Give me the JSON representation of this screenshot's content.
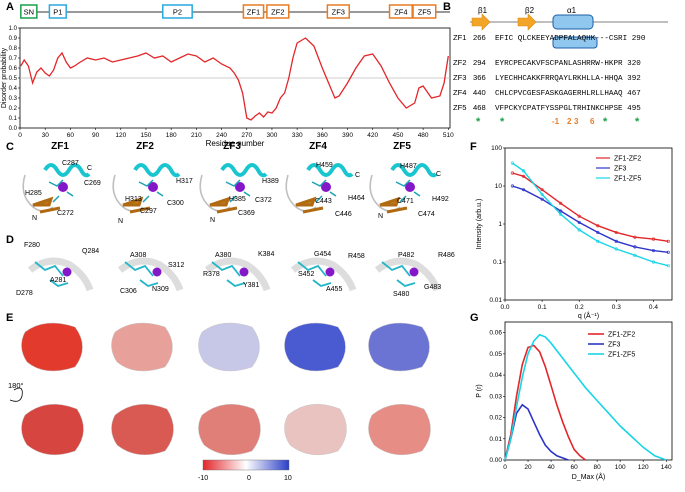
{
  "panels": {
    "a": "A",
    "b": "B",
    "c": "C",
    "d": "D",
    "e": "E",
    "f": "F",
    "g": "G"
  },
  "domains": [
    {
      "name": "SN",
      "start": 1,
      "end": 15,
      "color": "#1aa04a"
    },
    {
      "name": "P1",
      "start": 35,
      "end": 55,
      "color": "#29a9e0"
    },
    {
      "name": "P2",
      "start": 170,
      "end": 205,
      "color": "#29a9e0"
    },
    {
      "name": "ZF1",
      "start": 266,
      "end": 290,
      "color": "#e87b24"
    },
    {
      "name": "ZF2",
      "start": 294,
      "end": 320,
      "color": "#e87b24"
    },
    {
      "name": "ZF3",
      "start": 366,
      "end": 392,
      "color": "#e87b24"
    },
    {
      "name": "ZF4",
      "start": 440,
      "end": 467,
      "color": "#e87b24"
    },
    {
      "name": "ZF5",
      "start": 468,
      "end": 495,
      "color": "#e87b24"
    }
  ],
  "chart_data": [
    {
      "type": "line",
      "id": "disorder",
      "xlabel": "Residue number",
      "ylabel": "Disorder probability",
      "xlim": [
        0,
        512
      ],
      "ylim": [
        0,
        1.0
      ],
      "xticks": [
        0,
        30,
        60,
        90,
        120,
        150,
        180,
        210,
        240,
        270,
        300,
        330,
        360,
        390,
        420,
        450,
        480,
        510
      ],
      "yticks": [
        0.0,
        0.1,
        0.2,
        0.3,
        0.4,
        0.5,
        0.6,
        0.7,
        0.8,
        0.9,
        1.0
      ],
      "threshold": 0.5,
      "x": [
        1,
        5,
        10,
        15,
        20,
        25,
        30,
        35,
        40,
        45,
        50,
        55,
        60,
        65,
        70,
        80,
        90,
        100,
        110,
        120,
        130,
        140,
        150,
        160,
        170,
        180,
        190,
        200,
        210,
        220,
        230,
        240,
        250,
        255,
        260,
        265,
        270,
        275,
        280,
        285,
        290,
        295,
        300,
        305,
        310,
        315,
        320,
        325,
        330,
        340,
        350,
        360,
        370,
        375,
        380,
        390,
        400,
        410,
        420,
        430,
        440,
        450,
        460,
        470,
        475,
        480,
        490,
        500,
        505,
        510
      ],
      "y": [
        0.62,
        0.68,
        0.62,
        0.45,
        0.56,
        0.6,
        0.55,
        0.52,
        0.58,
        0.7,
        0.75,
        0.66,
        0.6,
        0.62,
        0.65,
        0.7,
        0.68,
        0.7,
        0.66,
        0.68,
        0.7,
        0.72,
        0.75,
        0.7,
        0.72,
        0.66,
        0.7,
        0.74,
        0.72,
        0.66,
        0.7,
        0.64,
        0.6,
        0.55,
        0.48,
        0.35,
        0.1,
        0.08,
        0.12,
        0.15,
        0.11,
        0.16,
        0.15,
        0.2,
        0.3,
        0.35,
        0.5,
        0.7,
        0.85,
        0.9,
        0.82,
        0.6,
        0.4,
        0.3,
        0.32,
        0.45,
        0.6,
        0.72,
        0.74,
        0.62,
        0.45,
        0.3,
        0.2,
        0.25,
        0.4,
        0.42,
        0.3,
        0.32,
        0.45,
        0.72
      ]
    },
    {
      "type": "line",
      "id": "saxs",
      "xlabel": "q (Å⁻¹)",
      "ylabel": "Intensity (arb.u.)",
      "xlim": [
        0,
        0.45
      ],
      "yscale": "log",
      "ylim": [
        0.01,
        100
      ],
      "xticks": [
        0.0,
        0.1,
        0.2,
        0.3,
        0.4
      ],
      "yticks": [
        "0.01",
        "0.1",
        "1",
        "10",
        "100"
      ],
      "series": [
        {
          "name": "ZF1-ZF2",
          "color": "#e3262a",
          "x": [
            0.02,
            0.05,
            0.1,
            0.15,
            0.2,
            0.25,
            0.3,
            0.35,
            0.4,
            0.44
          ],
          "y": [
            22,
            18,
            8,
            3.5,
            1.6,
            0.9,
            0.6,
            0.45,
            0.4,
            0.35
          ]
        },
        {
          "name": "ZF3",
          "color": "#2d35c9",
          "x": [
            0.02,
            0.05,
            0.1,
            0.15,
            0.2,
            0.25,
            0.3,
            0.35,
            0.4,
            0.44
          ],
          "y": [
            10,
            8,
            4.5,
            2.2,
            1.1,
            0.6,
            0.35,
            0.25,
            0.2,
            0.18
          ]
        },
        {
          "name": "ZF1-ZF5",
          "color": "#18d5e6",
          "x": [
            0.02,
            0.05,
            0.1,
            0.15,
            0.2,
            0.25,
            0.3,
            0.35,
            0.4,
            0.44
          ],
          "y": [
            40,
            25,
            6,
            1.8,
            0.7,
            0.35,
            0.22,
            0.15,
            0.1,
            0.08
          ]
        }
      ]
    },
    {
      "type": "line",
      "id": "pr",
      "xlabel": "D_Max (Å)",
      "ylabel": "P (r)",
      "xlim": [
        0,
        145
      ],
      "ylim": [
        0,
        0.065
      ],
      "xticks": [
        0,
        20,
        40,
        60,
        80,
        100,
        120,
        140
      ],
      "yticks": [
        "0.00",
        "0.01",
        "0.02",
        "0.03",
        "0.04",
        "0.05",
        "0.06"
      ],
      "series": [
        {
          "name": "ZF1-ZF2",
          "color": "#e3262a",
          "x": [
            0,
            5,
            10,
            15,
            20,
            25,
            30,
            35,
            40,
            45,
            50,
            55,
            60,
            65,
            70
          ],
          "y": [
            0,
            0.012,
            0.03,
            0.045,
            0.053,
            0.054,
            0.051,
            0.044,
            0.035,
            0.026,
            0.018,
            0.011,
            0.005,
            0.002,
            0
          ]
        },
        {
          "name": "ZF3",
          "color": "#2d35c9",
          "x": [
            0,
            5,
            10,
            15,
            20,
            25,
            30,
            35,
            40,
            45,
            50,
            55
          ],
          "y": [
            0,
            0.01,
            0.022,
            0.026,
            0.024,
            0.018,
            0.012,
            0.007,
            0.004,
            0.002,
            0.001,
            0
          ]
        },
        {
          "name": "ZF1-ZF5",
          "color": "#18d5e6",
          "x": [
            0,
            5,
            10,
            15,
            20,
            25,
            30,
            35,
            40,
            50,
            60,
            70,
            80,
            90,
            100,
            110,
            120,
            130,
            140
          ],
          "y": [
            0,
            0.01,
            0.025,
            0.039,
            0.05,
            0.056,
            0.059,
            0.058,
            0.055,
            0.048,
            0.041,
            0.034,
            0.028,
            0.022,
            0.016,
            0.011,
            0.006,
            0.002,
            0
          ]
        }
      ]
    }
  ],
  "zf_titles": [
    "ZF1",
    "ZF2",
    "ZF3",
    "ZF4",
    "ZF5"
  ],
  "panel_c_labels": [
    [
      "C287",
      "C269",
      "H285",
      "C272",
      "C",
      "N"
    ],
    [
      "H317",
      "H313",
      "C300",
      "C297",
      "N"
    ],
    [
      "H389",
      "H385",
      "C372",
      "C369",
      "N"
    ],
    [
      "H459",
      "C",
      "H464",
      "C443",
      "C446"
    ],
    [
      "H487",
      "C",
      "H492",
      "C471",
      "C474",
      "N"
    ]
  ],
  "panel_d_labels": [
    [
      "F280",
      "Q284",
      "A281",
      "D278"
    ],
    [
      "A308",
      "S312",
      "C306",
      "N309"
    ],
    [
      "A380",
      "K384",
      "R378",
      "Y381"
    ],
    [
      "G454",
      "R458",
      "S452",
      "A455"
    ],
    [
      "P482",
      "R486",
      "S480",
      "G483"
    ]
  ],
  "colorbar": {
    "min": "-10",
    "mid": "0",
    "max": "10"
  },
  "rotation_label": "180°",
  "sec_structure": [
    "β1",
    "β2",
    "α1"
  ],
  "sequences": [
    {
      "name": "ZF1",
      "start": "266",
      "end": "290",
      "seq": "EFIC QLCKEEYADPFALAQHK---CSRI"
    },
    {
      "name": "ZF2",
      "start": "294",
      "end": "320",
      "seq": "EYRCPECAKVFSCPANLASHRRW-HKPR"
    },
    {
      "name": "ZF3",
      "start": "366",
      "end": "392",
      "seq": "LYECHHCAKKFRRQAYLRKHLLA-HHQA"
    },
    {
      "name": "ZF4",
      "start": "440",
      "end": "467",
      "seq": "CHLCPVCGESFASKGAGERHLRLLHAAQ"
    },
    {
      "name": "ZF5",
      "start": "468",
      "end": "495",
      "seq": "VFPCKYCPATFYSSPGLTRHINKCHPSE"
    }
  ],
  "seq_positions": {
    "m1": "-1",
    "p2": "2",
    "p3": "3",
    "p6": "6"
  }
}
